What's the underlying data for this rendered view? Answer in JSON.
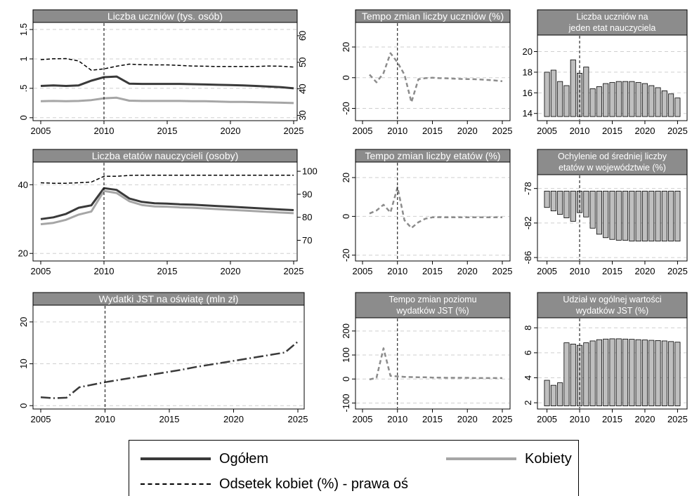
{
  "colors": {
    "ogolem": "#3a3a3a",
    "kobiety": "#a6a6a6",
    "odsetek": "#000000",
    "bar_fill": "#bfbfbf",
    "header_bg": "#8c8c8c"
  },
  "legend": {
    "ogolem": "Ogółem",
    "kobiety": "Kobiety",
    "odsetek": "Odsetek kobiet (%) - prawa oś"
  },
  "chart_data": [
    {
      "id": "uczniowie",
      "type": "line",
      "title": "Liczba uczniów (tys. osób)",
      "x": [
        2005,
        2006,
        2007,
        2008,
        2009,
        2010,
        2011,
        2012,
        2013,
        2014,
        2015,
        2016,
        2017,
        2018,
        2019,
        2020,
        2021,
        2022,
        2023,
        2024,
        2025
      ],
      "xticks": [
        2005,
        2010,
        2015,
        2020,
        2025
      ],
      "xlim": [
        2005,
        2025
      ],
      "ylim": [
        -0.05,
        1.62
      ],
      "yticks": [
        "0",
        ".5",
        "1",
        "1.5"
      ],
      "ytick_values": [
        0,
        0.5,
        1,
        1.5
      ],
      "y2lim": [
        28,
        65
      ],
      "y2ticks": [
        "30",
        "40",
        "50",
        "60"
      ],
      "y2tick_values": [
        30,
        40,
        50,
        60
      ],
      "vline": 2010,
      "series": [
        {
          "name": "Ogółem",
          "values": [
            0.54,
            0.55,
            0.54,
            0.55,
            0.63,
            0.69,
            0.7,
            0.58,
            0.575,
            0.575,
            0.575,
            0.575,
            0.57,
            0.565,
            0.56,
            0.555,
            0.55,
            0.54,
            0.53,
            0.52,
            0.5
          ]
        },
        {
          "name": "Kobiety",
          "values": [
            0.28,
            0.285,
            0.28,
            0.285,
            0.3,
            0.33,
            0.34,
            0.29,
            0.285,
            0.285,
            0.285,
            0.285,
            0.28,
            0.28,
            0.275,
            0.27,
            0.27,
            0.265,
            0.26,
            0.255,
            0.25
          ]
        },
        {
          "name": "Odsetek kobiet (%) - prawa oś",
          "axis": "right",
          "values": [
            51,
            51.3,
            51.4,
            50.5,
            47,
            47.5,
            48.5,
            49.3,
            49.1,
            49,
            49,
            48.8,
            48.6,
            48.5,
            48.4,
            48.4,
            48.4,
            48.4,
            48.6,
            48.5,
            48.2
          ]
        }
      ]
    },
    {
      "id": "tempo_uczniow",
      "type": "line",
      "title": "Tempo zmian liczby uczniów (%)",
      "x": [
        2006,
        2007,
        2008,
        2009,
        2010,
        2011,
        2012,
        2013,
        2014,
        2015,
        2016,
        2017,
        2018,
        2019,
        2020,
        2021,
        2022,
        2023,
        2024,
        2025
      ],
      "xticks": [
        2005,
        2010,
        2015,
        2020,
        2025
      ],
      "xlim": [
        2005,
        2025
      ],
      "ylim": [
        -28,
        36
      ],
      "yticks": [
        "-20",
        "0",
        "20"
      ],
      "ytick_values": [
        -20,
        0,
        20
      ],
      "vline": 2010,
      "series": [
        {
          "name": "Ogółem",
          "values": [
            2,
            -3,
            3,
            16,
            10,
            2,
            -16,
            -1,
            -0.3,
            0,
            -0.3,
            -0.4,
            -0.6,
            -0.8,
            -0.9,
            -1,
            -1.2,
            -1.5,
            -1.8,
            -2.3
          ]
        }
      ]
    },
    {
      "id": "uczniowie_na_etat",
      "type": "bar",
      "title": "Liczba uczniów na\njeden etat nauczyciela",
      "x": [
        2005,
        2006,
        2007,
        2008,
        2009,
        2010,
        2011,
        2012,
        2013,
        2014,
        2015,
        2016,
        2017,
        2018,
        2019,
        2020,
        2021,
        2022,
        2023,
        2024,
        2025
      ],
      "xticks": [
        2005,
        2010,
        2015,
        2020,
        2025
      ],
      "xlim": [
        2004.4,
        2025.6
      ],
      "ylim": [
        13.3,
        21.6
      ],
      "yticks": [
        "14",
        "16",
        "18",
        "20"
      ],
      "ytick_values": [
        14,
        16,
        18,
        20
      ],
      "bar_base": 13.7,
      "vline": 2010,
      "values": [
        18.0,
        18.2,
        17.1,
        16.7,
        19.2,
        17.9,
        18.5,
        16.4,
        16.6,
        16.9,
        17.0,
        17.1,
        17.1,
        17.1,
        17.0,
        16.9,
        16.7,
        16.5,
        16.2,
        15.9,
        15.5
      ]
    },
    {
      "id": "etaty",
      "type": "line",
      "title": "Liczba etatów nauczycieli (osoby)",
      "x": [
        2005,
        2006,
        2007,
        2008,
        2009,
        2010,
        2011,
        2012,
        2013,
        2014,
        2015,
        2016,
        2017,
        2018,
        2019,
        2020,
        2021,
        2022,
        2023,
        2024,
        2025
      ],
      "xticks": [
        2005,
        2010,
        2015,
        2020,
        2025
      ],
      "xlim": [
        2005,
        2025
      ],
      "ylim": [
        17.8,
        46.6
      ],
      "yticks": [
        "20",
        "40"
      ],
      "ytick_values": [
        20,
        40
      ],
      "y2lim": [
        61,
        104
      ],
      "y2ticks": [
        "70",
        "80",
        "90",
        "100"
      ],
      "y2tick_values": [
        70,
        80,
        90,
        100
      ],
      "vline": 2010,
      "series": [
        {
          "name": "Ogółem",
          "values": [
            30.0,
            30.5,
            31.5,
            33.3,
            34.0,
            39.0,
            38.5,
            36.0,
            35.0,
            34.6,
            34.5,
            34.3,
            34.2,
            34.0,
            33.8,
            33.6,
            33.4,
            33.2,
            33.0,
            32.8,
            32.6
          ]
        },
        {
          "name": "Kobiety",
          "values": [
            28.5,
            28.9,
            29.8,
            31.3,
            32.2,
            38.2,
            37.6,
            35.2,
            34.1,
            33.7,
            33.6,
            33.4,
            33.3,
            33.1,
            32.9,
            32.7,
            32.5,
            32.3,
            32.1,
            31.9,
            31.7
          ]
        },
        {
          "name": "Odsetek kobiet (%) - prawa oś",
          "axis": "right",
          "values": [
            95,
            94.8,
            94.8,
            95,
            95.3,
            97.8,
            97.8,
            98.2,
            98.3,
            98.3,
            98.3,
            98.3,
            98.3,
            98.3,
            98.3,
            98.3,
            98.3,
            98.3,
            98.3,
            98.3,
            98.3
          ]
        }
      ]
    },
    {
      "id": "tempo_etatow",
      "type": "line",
      "title": "Tempo zmian liczby etatów (%)",
      "x": [
        2006,
        2007,
        2008,
        2009,
        2010,
        2011,
        2012,
        2013,
        2014,
        2015,
        2016,
        2017,
        2018,
        2019,
        2020,
        2021,
        2022,
        2023,
        2024,
        2025
      ],
      "xticks": [
        2005,
        2010,
        2015,
        2020,
        2025
      ],
      "xlim": [
        2005,
        2025
      ],
      "ylim": [
        -23,
        28
      ],
      "yticks": [
        "-20",
        "0",
        "20"
      ],
      "ytick_values": [
        -20,
        0,
        20
      ],
      "vline": 2010,
      "series": [
        {
          "name": "Ogółem",
          "values": [
            1.5,
            3,
            6,
            2,
            15,
            -2,
            -6,
            -3,
            -1.2,
            -0.5,
            -0.4,
            -0.5,
            -0.5,
            -0.5,
            -0.5,
            -0.5,
            -0.5,
            -0.5,
            -0.5,
            -0.5
          ]
        }
      ]
    },
    {
      "id": "ochylenie",
      "type": "bar",
      "title": "Ochylenie od średniej liczby\netatów w województwie (%)",
      "x": [
        2005,
        2006,
        2007,
        2008,
        2009,
        2010,
        2011,
        2012,
        2013,
        2014,
        2015,
        2016,
        2017,
        2018,
        2019,
        2020,
        2021,
        2022,
        2023,
        2024,
        2025
      ],
      "xticks": [
        2005,
        2010,
        2015,
        2020,
        2025
      ],
      "xlim": [
        2004.4,
        2025.6
      ],
      "ylim": [
        -86.4,
        -76.4
      ],
      "yticks": [
        "-78",
        "-82",
        "-86"
      ],
      "ytick_values": [
        -78,
        -82,
        -86
      ],
      "bar_base": -78.3,
      "vline": 2010,
      "values": [
        -80.2,
        -80.6,
        -81.0,
        -81.4,
        -81.8,
        -80.8,
        -81.3,
        -82.6,
        -83.3,
        -83.7,
        -83.9,
        -84.0,
        -84.0,
        -84.1,
        -84.1,
        -84.1,
        -84.1,
        -84.1,
        -84.1,
        -84.1,
        -84.1
      ]
    },
    {
      "id": "wydatki",
      "type": "line",
      "title": "Wydatki JST na oświatę (mln zł)",
      "x": [
        2005,
        2006,
        2007,
        2008,
        2009,
        2010,
        2011,
        2012,
        2013,
        2014,
        2015,
        2016,
        2017,
        2018,
        2019,
        2020,
        2021,
        2022,
        2023,
        2024,
        2025
      ],
      "xticks": [
        2005,
        2010,
        2015,
        2020,
        2025
      ],
      "xlim": [
        2005,
        2025
      ],
      "ylim": [
        -0.8,
        24
      ],
      "yticks": [
        "0",
        "10",
        "20"
      ],
      "ytick_values": [
        0,
        10,
        20
      ],
      "vline": 2010,
      "series": [
        {
          "name": "Ogółem",
          "values": [
            2.0,
            1.8,
            1.9,
            4.4,
            5.0,
            5.6,
            6.1,
            6.6,
            7.1,
            7.6,
            8.1,
            8.6,
            9.2,
            9.7,
            10.2,
            10.7,
            11.2,
            11.7,
            12.2,
            12.7,
            15.3
          ]
        }
      ]
    },
    {
      "id": "tempo_wydatkow",
      "type": "line",
      "title": "Tempo zmian poziomu\nwydatków JST (%)",
      "x": [
        2006,
        2007,
        2008,
        2009,
        2010,
        2011,
        2012,
        2013,
        2014,
        2015,
        2016,
        2017,
        2018,
        2019,
        2020,
        2021,
        2022,
        2023,
        2024,
        2025
      ],
      "xticks": [
        2005,
        2010,
        2015,
        2020,
        2025
      ],
      "xlim": [
        2005,
        2025
      ],
      "ylim": [
        -125,
        255
      ],
      "yticks": [
        "-100",
        "0",
        "100",
        "200"
      ],
      "ytick_values": [
        -100,
        0,
        100,
        200
      ],
      "vline": 2010,
      "series": [
        {
          "name": "Ogółem",
          "values": [
            -2,
            5,
            128,
            13,
            11,
            9,
            8,
            7,
            7,
            6,
            6,
            5,
            5,
            5,
            5,
            4,
            4,
            4,
            4,
            4
          ]
        }
      ]
    },
    {
      "id": "udzial",
      "type": "bar",
      "title": "Udział w ogólnej wartości\nwydatków JST (%)",
      "x": [
        2005,
        2006,
        2007,
        2008,
        2009,
        2010,
        2011,
        2012,
        2013,
        2014,
        2015,
        2016,
        2017,
        2018,
        2019,
        2020,
        2021,
        2022,
        2023,
        2024,
        2025
      ],
      "xticks": [
        2005,
        2010,
        2015,
        2020,
        2025
      ],
      "xlim": [
        2004.4,
        2025.6
      ],
      "ylim": [
        1.5,
        8.8
      ],
      "yticks": [
        "2",
        "4",
        "6",
        "8"
      ],
      "ytick_values": [
        2,
        4,
        6,
        8
      ],
      "bar_base": 1.75,
      "vline": 2010,
      "values": [
        3.8,
        3.4,
        3.6,
        6.8,
        6.7,
        6.6,
        6.8,
        6.95,
        7.05,
        7.1,
        7.12,
        7.12,
        7.1,
        7.08,
        7.05,
        7.03,
        7.0,
        6.98,
        6.95,
        6.9,
        6.85
      ]
    }
  ]
}
